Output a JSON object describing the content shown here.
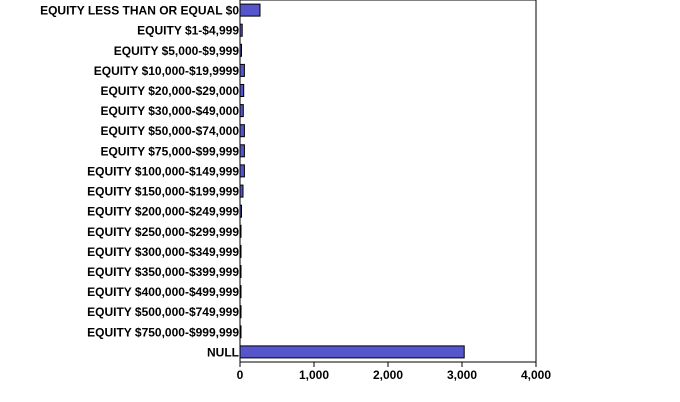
{
  "chart_data": {
    "type": "bar",
    "orientation": "horizontal",
    "categories": [
      "EQUITY LESS THAN OR EQUAL $0",
      "EQUITY $1-$4,999",
      "EQUITY $5,000-$9,999",
      "EQUITY $10,000-$19,9999",
      "EQUITY $20,000-$29,000",
      "EQUITY $30,000-$49,000",
      "EQUITY $50,000-$74,000",
      "EQUITY $75,000-$99,999",
      "EQUITY $100,000-$149,999",
      "EQUITY $150,000-$199,999",
      "EQUITY $200,000-$249,999",
      "EQUITY $250,000-$299,999",
      "EQUITY $300,000-$349,999",
      "EQUITY $350,000-$399,999",
      "EQUITY $400,000-$499,999",
      "EQUITY $500,000-$749,999",
      "EQUITY $750,000-$999,999",
      "NULL"
    ],
    "values": [
      270,
      30,
      20,
      60,
      50,
      45,
      60,
      60,
      60,
      40,
      20,
      5,
      5,
      5,
      5,
      5,
      5,
      3030
    ],
    "xlim": [
      0,
      4000
    ],
    "ticks": [
      0,
      1000,
      2000,
      3000,
      4000
    ],
    "tick_labels": [
      "0",
      "1,000",
      "2,000",
      "3,000",
      "4,000"
    ],
    "title": "",
    "xlabel": "",
    "ylabel": "",
    "grid": false,
    "legend": "none",
    "colors": {
      "bar_fill": "#5555cc",
      "axis": "#000000",
      "background": "#ffffff"
    }
  }
}
